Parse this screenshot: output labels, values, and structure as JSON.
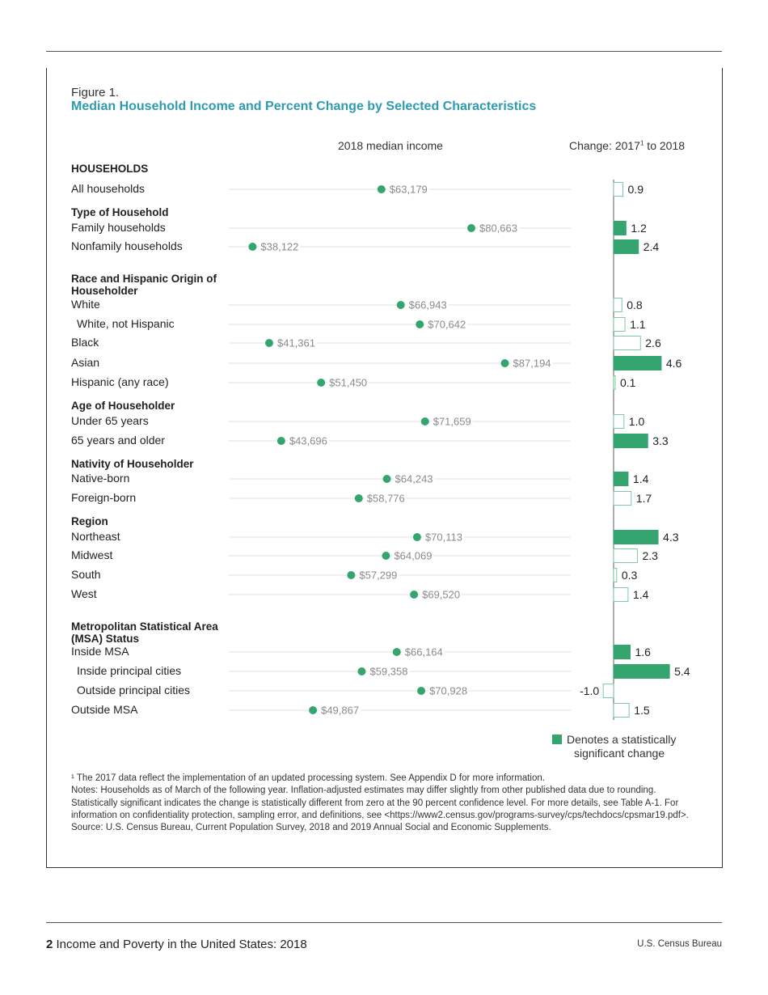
{
  "figure_label": "Figure 1.",
  "title": "Median Household Income and Percent Change by Selected Characteristics",
  "column_headers": {
    "income": "2018 median income",
    "change_prefix": "Change: 2017",
    "change_sup": "1",
    "change_suffix": " to 2018"
  },
  "colors": {
    "accent": "#34a56f",
    "title": "#2e9bb0",
    "line": "#e2e2e2"
  },
  "legend": {
    "line1": "Denotes a statistically",
    "line2": "significant change"
  },
  "chart_data": {
    "type": "dot-and-bar",
    "income_axis_range": [
      33500,
      100000
    ],
    "change_unit": "percent",
    "rows": [
      {
        "kind": "group",
        "label": "HOUSEHOLDS"
      },
      {
        "kind": "row",
        "label": "All households",
        "income": 63179,
        "income_label": "$63,179",
        "change": 0.9,
        "change_label": "0.9",
        "significant": false
      },
      {
        "kind": "group",
        "label": "Type of Household"
      },
      {
        "kind": "row",
        "label": "Family households",
        "income": 80663,
        "income_label": "$80,663",
        "change": 1.2,
        "change_label": "1.2",
        "significant": true
      },
      {
        "kind": "row",
        "label": "Nonfamily households",
        "income": 38122,
        "income_label": "$38,122",
        "change": 2.4,
        "change_label": "2.4",
        "significant": true
      },
      {
        "kind": "group",
        "label": "Race and Hispanic Origin of Householder"
      },
      {
        "kind": "row",
        "label": "White",
        "income": 66943,
        "income_label": "$66,943",
        "change": 0.8,
        "change_label": "0.8",
        "significant": false
      },
      {
        "kind": "row",
        "label": "White, not Hispanic",
        "indent": true,
        "income": 70642,
        "income_label": "$70,642",
        "change": 1.1,
        "change_label": "1.1",
        "significant": false
      },
      {
        "kind": "row",
        "label": "Black",
        "income": 41361,
        "income_label": "$41,361",
        "change": 2.6,
        "change_label": "2.6",
        "significant": false
      },
      {
        "kind": "row",
        "label": "Asian",
        "income": 87194,
        "income_label": "$87,194",
        "change": 4.6,
        "change_label": "4.6",
        "significant": true
      },
      {
        "kind": "row",
        "label": "Hispanic (any race)",
        "income": 51450,
        "income_label": "$51,450",
        "change": 0.1,
        "change_label": "0.1",
        "significant": false
      },
      {
        "kind": "group",
        "label": "Age of Householder"
      },
      {
        "kind": "row",
        "label": "Under 65 years",
        "income": 71659,
        "income_label": "$71,659",
        "change": 1.0,
        "change_label": "1.0",
        "significant": false
      },
      {
        "kind": "row",
        "label": "65 years and older",
        "income": 43696,
        "income_label": "$43,696",
        "change": 3.3,
        "change_label": "3.3",
        "significant": true
      },
      {
        "kind": "group",
        "label": "Nativity of Householder"
      },
      {
        "kind": "row",
        "label": "Native-born",
        "income": 64243,
        "income_label": "$64,243",
        "change": 1.4,
        "change_label": "1.4",
        "significant": true
      },
      {
        "kind": "row",
        "label": "Foreign-born",
        "income": 58776,
        "income_label": "$58,776",
        "change": 1.7,
        "change_label": "1.7",
        "significant": false
      },
      {
        "kind": "group",
        "label": "Region"
      },
      {
        "kind": "row",
        "label": "Northeast",
        "income": 70113,
        "income_label": "$70,113",
        "change": 4.3,
        "change_label": "4.3",
        "significant": true
      },
      {
        "kind": "row",
        "label": "Midwest",
        "income": 64069,
        "income_label": "$64,069",
        "change": 2.3,
        "change_label": "2.3",
        "significant": false
      },
      {
        "kind": "row",
        "label": "South",
        "income": 57299,
        "income_label": "$57,299",
        "change": 0.3,
        "change_label": "0.3",
        "significant": false
      },
      {
        "kind": "row",
        "label": "West",
        "income": 69520,
        "income_label": "$69,520",
        "change": 1.4,
        "change_label": "1.4",
        "significant": false
      },
      {
        "kind": "group",
        "label": "Metropolitan Statistical Area (MSA) Status"
      },
      {
        "kind": "row",
        "label": "Inside MSA",
        "income": 66164,
        "income_label": "$66,164",
        "change": 1.6,
        "change_label": "1.6",
        "significant": true
      },
      {
        "kind": "row",
        "label": "Inside principal cities",
        "indent": true,
        "income": 59358,
        "income_label": "$59,358",
        "change": 5.4,
        "change_label": "5.4",
        "significant": true
      },
      {
        "kind": "row",
        "label": "Outside principal cities",
        "indent": true,
        "income": 70928,
        "income_label": "$70,928",
        "change": -1.0,
        "change_label": "-1.0",
        "significant": false
      },
      {
        "kind": "row",
        "label": "Outside MSA",
        "income": 49867,
        "income_label": "$49,867",
        "change": 1.5,
        "change_label": "1.5",
        "significant": false
      }
    ]
  },
  "notes": {
    "footnote": "¹ The 2017 data reflect the implementation of an updated processing system. See Appendix D for more information.",
    "notes": "Notes: Households as of March of the following year. Inflation-adjusted estimates may differ slightly from other published data due to rounding. Statistically significant indicates the change is statistically different from zero at the 90 percent confidence level. For more details, see Table A-1. For information on confidentiality protection, sampling error, and definitions, see <https://www2.census.gov/programs-survey/cps/techdocs/cpsmar19.pdf>.",
    "source": "Source: U.S. Census Bureau, Current Population Survey, 2018 and 2019 Annual Social and Economic Supplements."
  },
  "footer": {
    "page_number": "2",
    "publication": " Income and Poverty in the United States: 2018",
    "agency": "U.S. Census Bureau"
  }
}
